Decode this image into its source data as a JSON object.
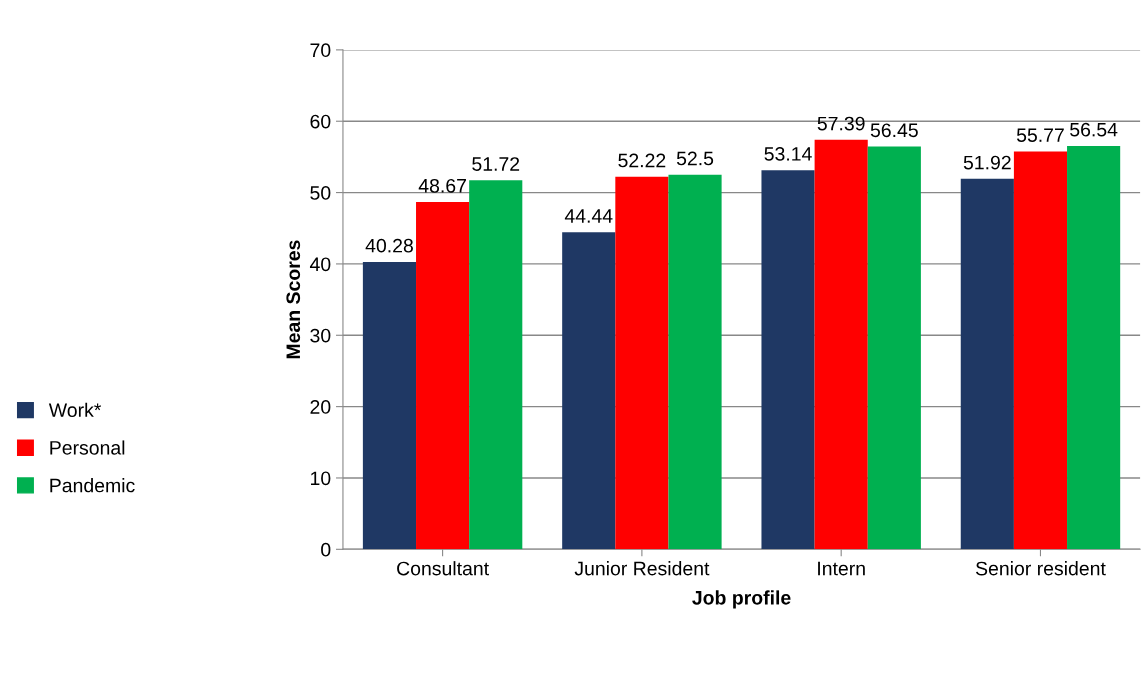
{
  "chart_data": {
    "type": "bar",
    "xlabel": "Job profile",
    "ylabel": "Mean Scores",
    "categories": [
      "Consultant",
      "Junior Resident",
      "Intern",
      "Senior resident"
    ],
    "series": [
      {
        "name": "Work*",
        "color": "#1f3864",
        "values": [
          40.28,
          44.44,
          53.14,
          51.92
        ]
      },
      {
        "name": "Personal",
        "color": "#ff0000",
        "values": [
          48.67,
          52.22,
          57.39,
          55.77
        ]
      },
      {
        "name": "Pandemic",
        "color": "#00b050",
        "values": [
          51.72,
          52.5,
          56.45,
          56.54
        ]
      }
    ],
    "ylim": [
      0,
      70
    ],
    "yticks": [
      0,
      10,
      20,
      30,
      40,
      50,
      60,
      70
    ],
    "grid": "y",
    "legend": "left",
    "data_labels": true
  }
}
